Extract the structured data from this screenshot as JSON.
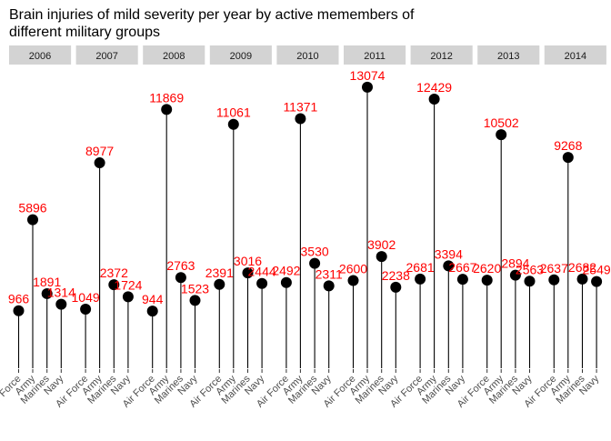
{
  "chart_data": {
    "type": "lollipop",
    "title_lines": [
      "Brain injuries of mild severity per year by active memembers of",
      "different military groups"
    ],
    "xlabel": "",
    "ylabel": "",
    "categories": [
      "Air Force",
      "Army",
      "Marines",
      "Navy"
    ],
    "facets": [
      {
        "label": "2006",
        "values": [
          966,
          5896,
          1891,
          1314
        ],
        "value_labels": [
          "966",
          "5896",
          "1891",
          "1314"
        ]
      },
      {
        "label": "2007",
        "values": [
          1049,
          8977,
          2372,
          1724
        ],
        "value_labels": [
          "1049",
          "8977",
          "2372",
          "1724"
        ]
      },
      {
        "label": "2008",
        "values": [
          944,
          11869,
          2763,
          1523
        ],
        "value_labels": [
          "944",
          "11869",
          "2763",
          "1523"
        ]
      },
      {
        "label": "2009",
        "values": [
          2391,
          11061,
          3016,
          2444
        ],
        "value_labels": [
          "2391",
          "11061",
          "3016",
          "2444"
        ]
      },
      {
        "label": "2010",
        "values": [
          2492,
          11371,
          3530,
          2311
        ],
        "value_labels": [
          "2492",
          "11371",
          "3530",
          "2311"
        ]
      },
      {
        "label": "2011",
        "values": [
          2600,
          13074,
          3902,
          2238
        ],
        "value_labels": [
          "2600",
          "13074",
          "3902",
          "2238"
        ]
      },
      {
        "label": "2012",
        "values": [
          2681,
          12429,
          3394,
          2667
        ],
        "value_labels": [
          "2681",
          "12429",
          "3394",
          "2667"
        ]
      },
      {
        "label": "2013",
        "values": [
          2620,
          10502,
          2894,
          2563
        ],
        "value_labels": [
          "2620",
          "10502",
          "2894",
          "2563"
        ]
      },
      {
        "label": "2014",
        "values": [
          2637,
          9268,
          2682,
          2549
        ],
        "value_labels": [
          "2637",
          "9268",
          "2682",
          "2549"
        ]
      }
    ],
    "ylim": [
      -2150,
      14200
    ],
    "grid": false,
    "colors": {
      "stem": "#000000",
      "point": "#000000",
      "value_label": "#ff0000",
      "strip": "#d3d3d3"
    }
  }
}
